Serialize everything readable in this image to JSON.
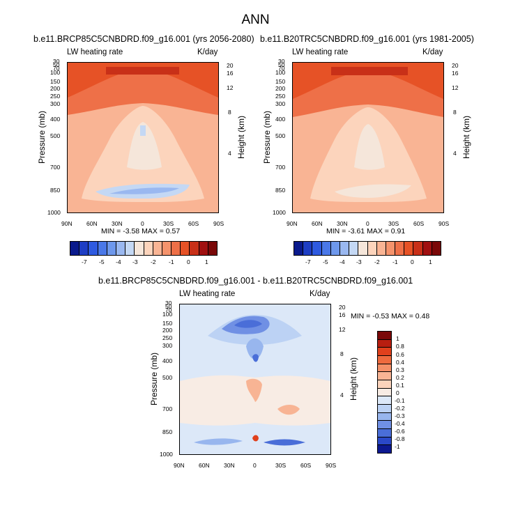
{
  "page": {
    "title": "ANN"
  },
  "panels": [
    {
      "case": "b.e11.BRCP85C5CNBDRD.f09_g16.001 (yrs 2056-2080)",
      "variable": "LW heating rate",
      "units": "K/day",
      "ylabel": "Pressure (mb)",
      "ylabel_right": "Height (km)",
      "stats": "MIN =   -3.58  MAX =   0.57"
    },
    {
      "case": "b.e11.B20TRC5CNBDRD.f09_g16.001 (yrs 1981-2005)",
      "variable": "LW heating rate",
      "units": "K/day",
      "ylabel": "Pressure (mb)",
      "ylabel_right": "Height (km)",
      "stats": "MIN =   -3.61  MAX =   0.91"
    },
    {
      "case": "b.e11.BRCP85C5CNBDRD.f09_g16.001 - b.e11.B20TRC5CNBDRD.f09_g16.001",
      "variable": "LW heating rate",
      "units": "K/day",
      "ylabel": "Pressure (mb)",
      "ylabel_right": "Height (km)",
      "stats": "MIN =  -0.53  MAX =   0.48"
    }
  ],
  "chart_data": [
    {
      "type": "heatmap",
      "title": "b.e11.BRCP85C5CNBDRD.f09_g16.001 (yrs 2056-2080)",
      "variable": "LW heating rate",
      "units": "K/day",
      "x_ticks": [
        "90N",
        "60N",
        "30N",
        "0",
        "30S",
        "60S",
        "90S"
      ],
      "y_ticks_pressure": [
        "30",
        "50",
        "70",
        "100",
        "150",
        "200",
        "250",
        "300",
        "400",
        "500",
        "700",
        "850",
        "1000"
      ],
      "y_ticks_height": [
        "20",
        "16",
        "12",
        "8",
        "4"
      ],
      "ylabel": "Pressure (mb)",
      "ylabel_right": "Height (km)",
      "min": -3.58,
      "max": 0.57,
      "colorbar_levels": [
        "-7",
        "-5",
        "-4",
        "-3",
        "-2",
        "-1",
        "0",
        "1"
      ]
    },
    {
      "type": "heatmap",
      "title": "b.e11.B20TRC5CNBDRD.f09_g16.001 (yrs 1981-2005)",
      "variable": "LW heating rate",
      "units": "K/day",
      "x_ticks": [
        "90N",
        "60N",
        "30N",
        "0",
        "30S",
        "60S",
        "90S"
      ],
      "y_ticks_pressure": [
        "30",
        "50",
        "70",
        "100",
        "150",
        "200",
        "250",
        "300",
        "400",
        "500",
        "700",
        "850",
        "1000"
      ],
      "y_ticks_height": [
        "20",
        "16",
        "12",
        "8",
        "4"
      ],
      "ylabel": "Pressure (mb)",
      "ylabel_right": "Height (km)",
      "min": -3.61,
      "max": 0.91,
      "colorbar_levels": [
        "-7",
        "-5",
        "-4",
        "-3",
        "-2",
        "-1",
        "0",
        "1"
      ]
    },
    {
      "type": "heatmap",
      "title": "b.e11.BRCP85C5CNBDRD.f09_g16.001 - b.e11.B20TRC5CNBDRD.f09_g16.001",
      "variable": "LW heating rate",
      "units": "K/day",
      "x_ticks": [
        "90N",
        "60N",
        "30N",
        "0",
        "30S",
        "60S",
        "90S"
      ],
      "y_ticks_pressure": [
        "30",
        "50",
        "70",
        "100",
        "150",
        "200",
        "250",
        "300",
        "400",
        "500",
        "700",
        "850",
        "1000"
      ],
      "y_ticks_height": [
        "20",
        "16",
        "12",
        "8",
        "4"
      ],
      "ylabel": "Pressure (mb)",
      "ylabel_right": "Height (km)",
      "min": -0.53,
      "max": 0.48,
      "colorbar_levels": [
        "1",
        "0.8",
        "0.6",
        "0.4",
        "0.3",
        "0.2",
        "0.1",
        "0",
        "-0.1",
        "-0.2",
        "-0.3",
        "-0.4",
        "-0.6",
        "-0.8",
        "-1"
      ]
    }
  ],
  "colors": {
    "abs_colorbar": [
      "#0a1a8c",
      "#1e3ec4",
      "#2e5ae0",
      "#4a78e8",
      "#6e98ec",
      "#9ab8f0",
      "#c4d8f4",
      "#f5e6da",
      "#fcd4bc",
      "#f9b494",
      "#f5936c",
      "#ee7048",
      "#e65226",
      "#c83018",
      "#a01010",
      "#7a0808"
    ],
    "diff_colorbar": [
      "#7a0808",
      "#b81e10",
      "#e0401c",
      "#ee6a3e",
      "#f49068",
      "#f8b494",
      "#fcd4bc",
      "#f8ece4",
      "#dce8f8",
      "#bcd2f4",
      "#98b6ee",
      "#7090e4",
      "#4a6ed8",
      "#2a48c8",
      "#0c1890"
    ]
  }
}
